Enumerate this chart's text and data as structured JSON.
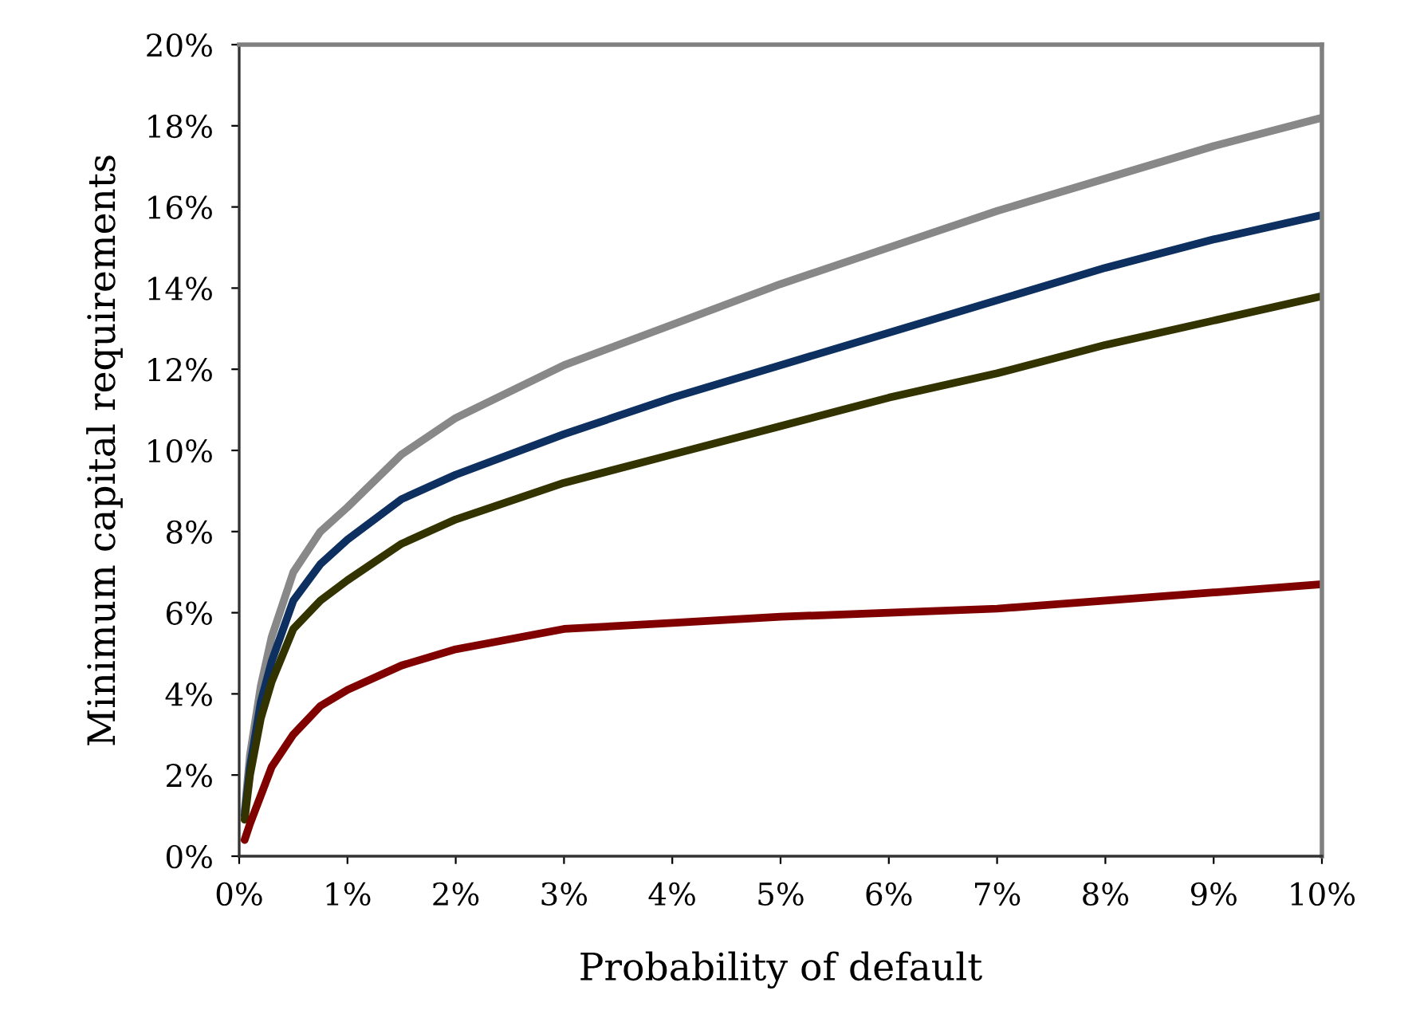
{
  "chart_data": {
    "type": "line",
    "xlabel": "Probability of default",
    "ylabel": "Minimum capital requirements",
    "x": [
      0.05,
      0.1,
      0.2,
      0.3,
      0.5,
      0.75,
      1,
      1.5,
      2,
      3,
      4,
      5,
      6,
      7,
      8,
      9,
      10
    ],
    "series": [
      {
        "color": "#888888",
        "values": [
          1.1,
          2.5,
          4.2,
          5.4,
          7.0,
          8.0,
          8.6,
          9.9,
          10.8,
          12.1,
          13.1,
          14.1,
          15.0,
          15.9,
          16.7,
          17.5,
          18.2
        ]
      },
      {
        "color": "#0d3060",
        "values": [
          1.0,
          2.2,
          3.8,
          4.8,
          6.3,
          7.2,
          7.8,
          8.8,
          9.4,
          10.4,
          11.3,
          12.1,
          12.9,
          13.7,
          14.5,
          15.2,
          15.8
        ]
      },
      {
        "color": "#333300",
        "values": [
          0.9,
          2.0,
          3.4,
          4.3,
          5.6,
          6.3,
          6.8,
          7.7,
          8.3,
          9.2,
          9.9,
          10.6,
          11.3,
          11.9,
          12.6,
          13.2,
          13.8
        ]
      },
      {
        "color": "#800000",
        "values": [
          0.4,
          0.8,
          1.5,
          2.2,
          3.0,
          3.7,
          4.1,
          4.7,
          5.1,
          5.6,
          5.75,
          5.9,
          6.0,
          6.1,
          6.3,
          6.5,
          6.7
        ]
      }
    ],
    "xlim": [
      0,
      10
    ],
    "ylim": [
      0,
      20
    ],
    "xticks": [
      {
        "value": 0,
        "label": "0%"
      },
      {
        "value": 1,
        "label": "1%"
      },
      {
        "value": 2,
        "label": "2%"
      },
      {
        "value": 3,
        "label": "3%"
      },
      {
        "value": 4,
        "label": "4%"
      },
      {
        "value": 5,
        "label": "5%"
      },
      {
        "value": 6,
        "label": "6%"
      },
      {
        "value": 7,
        "label": "7%"
      },
      {
        "value": 8,
        "label": "8%"
      },
      {
        "value": 9,
        "label": "9%"
      },
      {
        "value": 10,
        "label": "10%"
      }
    ],
    "yticks": [
      {
        "value": 0,
        "label": "0%"
      },
      {
        "value": 2,
        "label": "2%"
      },
      {
        "value": 4,
        "label": "4%"
      },
      {
        "value": 6,
        "label": "6%"
      },
      {
        "value": 8,
        "label": "8%"
      },
      {
        "value": 10,
        "label": "10%"
      },
      {
        "value": 12,
        "label": "12%"
      },
      {
        "value": 14,
        "label": "14%"
      },
      {
        "value": 16,
        "label": "16%"
      },
      {
        "value": 18,
        "label": "18%"
      },
      {
        "value": 20,
        "label": "20%"
      }
    ],
    "grid": false,
    "marker": "none",
    "line_style": "solid"
  }
}
